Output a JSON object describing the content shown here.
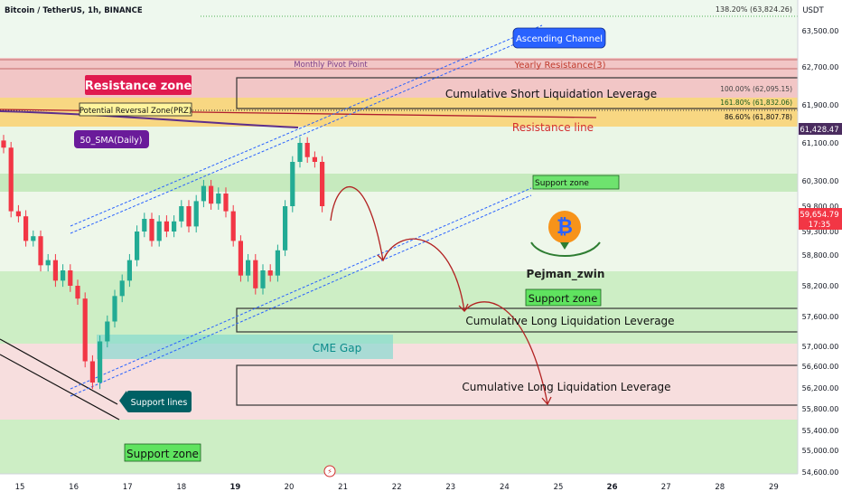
{
  "header": {
    "symbol_title": "Bitcoin / TetherUS, 1h, BINANCE",
    "currency": "USDT",
    "top_fib_label": "138.20% (63,824.26)"
  },
  "chart_data": {
    "type": "candlestick",
    "x_ticks": [
      "15",
      "16",
      "17",
      "18",
      "19",
      "20",
      "21",
      "22",
      "23",
      "24",
      "25",
      "26",
      "27",
      "28",
      "29"
    ],
    "y_ticks": [
      63500,
      62700,
      61900,
      61100,
      60300,
      59800,
      59300,
      58800,
      58200,
      57600,
      57000,
      56600,
      56200,
      55800,
      55400,
      55000,
      54600
    ],
    "y_tick_labels": [
      "63,500.00",
      "62,700.00",
      "61,900.00",
      "61,100.00",
      "60,300.00",
      "59,800.00",
      "59,300.00",
      "58,800.00",
      "58,200.00",
      "57,600.00",
      "57,000.00",
      "56,600.00",
      "56,200.00",
      "55,800.00",
      "55,400.00",
      "55,000.00",
      "54,600.00"
    ],
    "ylim": [
      54450,
      64050
    ],
    "price_badges": {
      "sma_value": "61,428.47",
      "current_price": "59,654.79",
      "countdown": "17:35"
    },
    "candles_close": [
      61000,
      59700,
      59600,
      59100,
      59200,
      58600,
      58700,
      58300,
      58500,
      58200,
      57950,
      56700,
      56300,
      57100,
      57500,
      58000,
      58300,
      58700,
      59300,
      59550,
      59100,
      59500,
      59300,
      59500,
      59800,
      59400,
      59900,
      60200,
      59850,
      60050,
      59700,
      59100,
      58400,
      58700,
      58150,
      58500,
      58400,
      58900,
      59800,
      60700,
      61100,
      60800,
      60700,
      59800
    ],
    "series": [
      {
        "name": "Resistance line"
      },
      {
        "name": "Ascending Channel"
      }
    ],
    "fib_levels": [
      {
        "label": "100.00% (62,095.15)",
        "price": 62095
      },
      {
        "label": "161.80% (61,832.06)",
        "price": 61832
      },
      {
        "label": "86.60% (61,807.78)",
        "price": 61808
      }
    ],
    "annotations": {
      "resistance_zone": "Resistance zone",
      "monthly_pivot": "Monthly Pivot Point",
      "yearly_resistance": "Yearly Resistance(3)",
      "prz": "Potential Reversal Zone(PRZ)",
      "sma": "50_SMA(Daily)",
      "short_liq": "Cumulative Short Liquidation Leverage",
      "resistance_line": "Resistance line",
      "support_zone_small": "Support zone",
      "support_zone_mid": "Support zone",
      "long_liq_1": "Cumulative Long Liquidation Leverage",
      "cme_gap": "CME Gap",
      "long_liq_2": "Cumulative Long Liquidation Leverage",
      "support_lines": "Support lines",
      "support_zone_bottom": "Support zone",
      "ascending_channel": "Ascending Channel",
      "author": "Pejman_zwin"
    },
    "colors": {
      "up": "#22ab94",
      "down": "#f23645",
      "resistance_fill": "#f4cccc",
      "support_fill": "#c8ecc0",
      "prz_fill": "#f9d77e",
      "channel": "#2962ff",
      "path": "#b22222"
    }
  }
}
